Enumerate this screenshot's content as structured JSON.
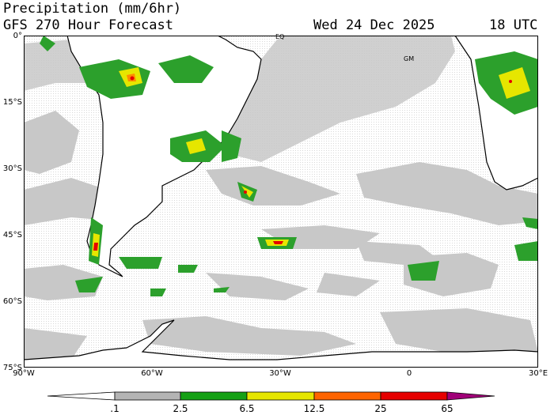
{
  "header": {
    "title": "Precipitation (mm/6hr)",
    "subtitle": "GFS 270 Hour Forecast",
    "valid_date": "Wed 24 Dec 2025",
    "valid_time": "18 UTC"
  },
  "map": {
    "projection": "latitude-longitude",
    "extent": {
      "lon": [
        -90,
        30
      ],
      "lat": [
        -75,
        0
      ]
    },
    "lat_labels": [
      "0°",
      "15°S",
      "30°S",
      "45°S",
      "60°S",
      "75°S"
    ],
    "lon_labels": [
      "90°W",
      "60°W",
      "30°W",
      "0",
      "30°E"
    ],
    "tags": [
      "EQ",
      "GM"
    ],
    "colors": {
      "background": "#ffffff",
      "coast": "#000000",
      "light_precip": "#c8c8c8",
      "moderate": "#2ca02c",
      "heavy": "#e6e600",
      "very_heavy": "#ff8c00",
      "extreme": "#e60000"
    }
  },
  "colorbar": {
    "levels": [
      ".1",
      "2.5",
      "6.5",
      "12.5",
      "25",
      "65"
    ],
    "colors": [
      "#ffffff",
      "#b4b4b4",
      "#14a014",
      "#e6e600",
      "#ff6400",
      "#e60000",
      "#a00078"
    ]
  }
}
